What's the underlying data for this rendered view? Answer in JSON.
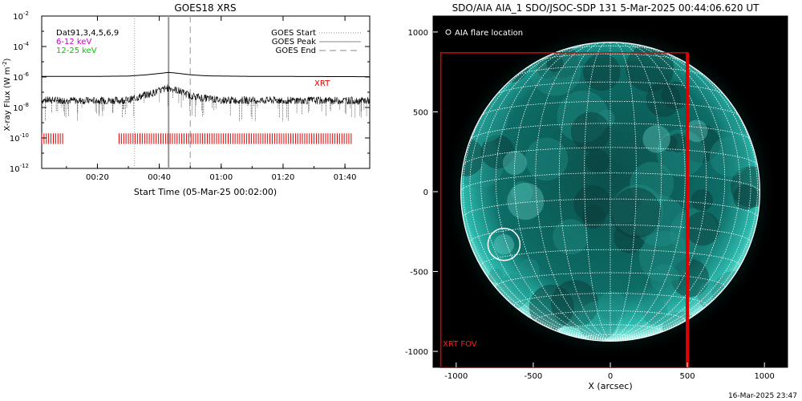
{
  "chart_data": [
    {
      "type": "line",
      "title": "GOES18 XRS",
      "xlabel": "Start Time (05-Mar-25 00:02:00)",
      "ylabel": "X-ray Flux (W m",
      "ylabel_sup": "-2",
      "ylabel_close": ")",
      "yscale": "log",
      "ylim": [
        1e-12,
        0.01
      ],
      "y_ticks": [
        {
          "base": "10",
          "exp": "-12",
          "value": 1e-12
        },
        {
          "base": "10",
          "exp": "-10",
          "value": 1e-10
        },
        {
          "base": "10",
          "exp": "-8",
          "value": 1e-08
        },
        {
          "base": "10",
          "exp": "-6",
          "value": 1e-06
        },
        {
          "base": "10",
          "exp": "-4",
          "value": 0.0001
        },
        {
          "base": "10",
          "exp": "-2",
          "value": 0.01
        }
      ],
      "x_ticks": [
        "00:20",
        "00:40",
        "01:00",
        "01:20",
        "01:40"
      ],
      "x_tick_minutes": [
        20,
        40,
        60,
        80,
        100
      ],
      "xlim_minutes": [
        2,
        108
      ],
      "legend_left": [
        {
          "label": "Dat91,3,4,5,6,9",
          "color": "#000000"
        },
        {
          "label": "6-12 keV",
          "color": "#d100d1"
        },
        {
          "label": "12-25 keV",
          "color": "#00c800"
        }
      ],
      "legend_right": [
        {
          "label": "GOES Start",
          "style": "dotted"
        },
        {
          "label": "GOES Peak",
          "style": "solid"
        },
        {
          "label": "GOES End",
          "style": "dashed"
        }
      ],
      "markers_minutes": {
        "start": 32,
        "peak": 43,
        "end": 50
      },
      "xrt_label": "XRT",
      "series": [
        {
          "name": "long",
          "x": [
            2,
            20,
            30,
            36,
            40,
            43,
            46,
            50,
            55,
            60,
            70,
            108
          ],
          "y": [
            1.1e-06,
            1.1e-06,
            1.15e-06,
            1.4e-06,
            1.7e-06,
            2e-06,
            1.75e-06,
            1.4e-06,
            1.2e-06,
            1.15e-06,
            1.1e-06,
            1.05e-06
          ]
        },
        {
          "name": "short",
          "x": [
            2,
            20,
            30,
            36,
            40,
            43,
            46,
            50,
            55,
            60,
            70,
            108
          ],
          "y": [
            3e-08,
            2.8e-08,
            3e-08,
            7e-08,
            1.2e-07,
            2e-07,
            1.3e-07,
            6e-08,
            4e-08,
            3e-08,
            3e-08,
            2.8e-08
          ]
        }
      ],
      "xrt_coverage_minutes": [
        [
          2,
          9
        ],
        [
          27,
          102
        ]
      ]
    },
    {
      "type": "image",
      "title": "SDO/AIA AIA_1 SDO/JSOC-SDP 131  5-Mar-2025 00:44:06.620 UT",
      "xlabel": "X (arcsec)",
      "xlim": [
        -1150,
        1150
      ],
      "ylim": [
        -1100,
        1100
      ],
      "x_ticks": [
        "-1000",
        "-500",
        "0",
        "500",
        "1000"
      ],
      "x_tick_values": [
        -1000,
        -500,
        0,
        500,
        1000
      ],
      "y_ticks": [
        "1000",
        "500",
        "0",
        "-500",
        "-1000"
      ],
      "y_tick_values": [
        1000,
        500,
        0,
        -500,
        -1000
      ],
      "solar_radius_arcsec": 970,
      "flare_location": {
        "x": -690,
        "y": -330
      },
      "legend": "AIA flare location",
      "fov_label": "XRT FOV",
      "fov_box": {
        "x1": -1100,
        "x2": 500,
        "y1": -1100,
        "y2": 870
      }
    }
  ],
  "footer": "16-Mar-2025 23:47"
}
